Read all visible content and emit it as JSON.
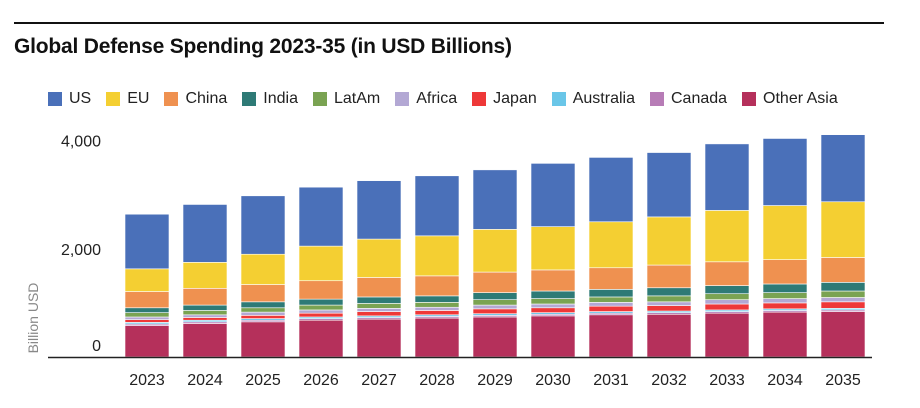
{
  "chart_data": {
    "type": "bar",
    "stacked": true,
    "title": "Global Defense Spending 2023-35 (in USD Billions)",
    "ylabel": "Billion USD",
    "ylim": [
      0,
      4400
    ],
    "yticks": [
      {
        "value": 0,
        "label": "0"
      },
      {
        "value": 2000,
        "label": "2,000"
      },
      {
        "value": 4000,
        "label": "4,000"
      }
    ],
    "categories": [
      "2023",
      "2024",
      "2025",
      "2026",
      "2027",
      "2028",
      "2029",
      "2030",
      "2031",
      "2032",
      "2033",
      "2034",
      "2035"
    ],
    "series": [
      {
        "name": "Other Asia",
        "color": "#b5305b",
        "values": [
          580,
          620,
          650,
          680,
          700,
          720,
          740,
          760,
          780,
          790,
          810,
          830,
          840
        ]
      },
      {
        "name": "Canada",
        "color": "#b77cb6",
        "values": [
          30,
          30,
          30,
          30,
          30,
          30,
          30,
          30,
          30,
          30,
          30,
          30,
          30
        ]
      },
      {
        "name": "Australia",
        "color": "#6ac6e8",
        "values": [
          30,
          30,
          30,
          30,
          30,
          30,
          30,
          30,
          30,
          30,
          30,
          30,
          30
        ]
      },
      {
        "name": "Japan",
        "color": "#ee3838",
        "values": [
          50,
          50,
          60,
          70,
          80,
          80,
          90,
          90,
          100,
          100,
          110,
          110,
          120
        ]
      },
      {
        "name": "Africa",
        "color": "#b3a8d4",
        "values": [
          50,
          50,
          60,
          60,
          60,
          60,
          70,
          70,
          70,
          70,
          80,
          80,
          80
        ]
      },
      {
        "name": "LatAm",
        "color": "#7aa352",
        "values": [
          80,
          80,
          80,
          90,
          90,
          90,
          100,
          100,
          100,
          110,
          110,
          110,
          120
        ]
      },
      {
        "name": "India",
        "color": "#2e7a76",
        "values": [
          90,
          100,
          110,
          110,
          120,
          120,
          130,
          140,
          140,
          150,
          150,
          160,
          160
        ]
      },
      {
        "name": "China",
        "color": "#ef9150",
        "values": [
          300,
          310,
          320,
          340,
          360,
          370,
          380,
          390,
          400,
          420,
          440,
          450,
          460
        ]
      },
      {
        "name": "EU",
        "color": "#f4cf32",
        "values": [
          420,
          480,
          560,
          640,
          710,
          740,
          790,
          800,
          850,
          890,
          950,
          1000,
          1030
        ]
      },
      {
        "name": "US",
        "color": "#4a70b9",
        "values": [
          1010,
          1070,
          1080,
          1090,
          1080,
          1110,
          1100,
          1170,
          1190,
          1190,
          1230,
          1240,
          1240
        ]
      }
    ]
  },
  "legend": {
    "items": [
      {
        "label": "US",
        "color": "#4a70b9"
      },
      {
        "label": "EU",
        "color": "#f4cf32"
      },
      {
        "label": "China",
        "color": "#ef9150"
      },
      {
        "label": "India",
        "color": "#2e7a76"
      },
      {
        "label": "LatAm",
        "color": "#7aa352"
      },
      {
        "label": "Africa",
        "color": "#b3a8d4"
      },
      {
        "label": "Japan",
        "color": "#ee3838"
      },
      {
        "label": "Australia",
        "color": "#6ac6e8"
      },
      {
        "label": "Canada",
        "color": "#b77cb6"
      },
      {
        "label": "Other Asia",
        "color": "#b5305b"
      }
    ]
  }
}
